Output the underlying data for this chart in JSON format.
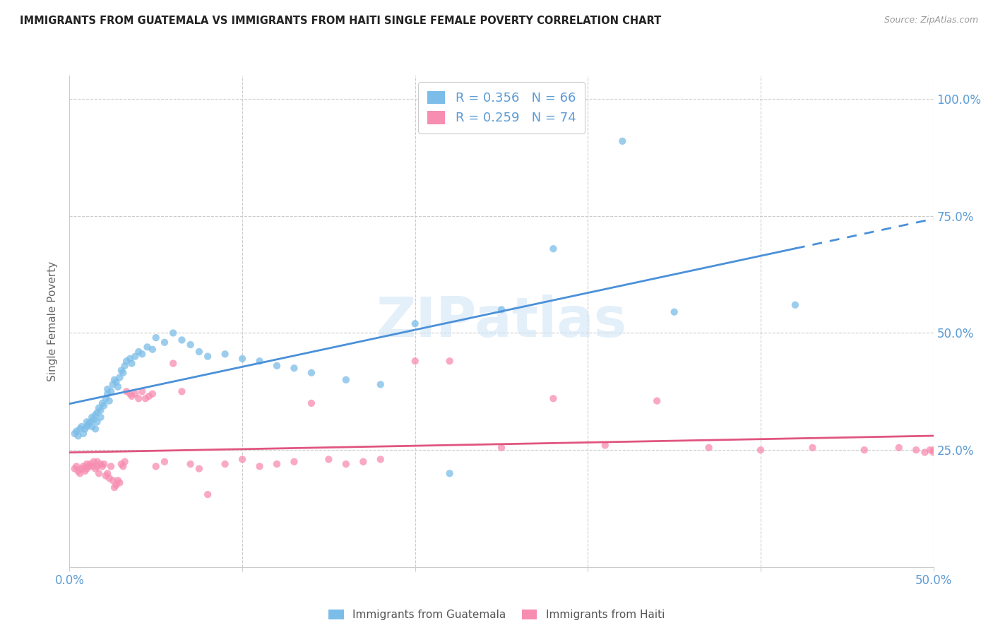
{
  "title": "IMMIGRANTS FROM GUATEMALA VS IMMIGRANTS FROM HAITI SINGLE FEMALE POVERTY CORRELATION CHART",
  "source": "Source: ZipAtlas.com",
  "ylabel": "Single Female Poverty",
  "xlim": [
    0.0,
    0.5
  ],
  "ylim": [
    0.0,
    1.05
  ],
  "R_guatemala": 0.356,
  "N_guatemala": 66,
  "R_haiti": 0.259,
  "N_haiti": 74,
  "color_guatemala": "#7bbde8",
  "color_haiti": "#f78db0",
  "color_trendline_guatemala": "#4a90d9",
  "color_trendline_haiti": "#e05580",
  "color_axis_labels": "#5b9bd5",
  "watermark": "ZIPatlas",
  "guatemala_x": [
    0.003,
    0.004,
    0.005,
    0.006,
    0.007,
    0.008,
    0.009,
    0.01,
    0.01,
    0.011,
    0.012,
    0.013,
    0.013,
    0.014,
    0.015,
    0.015,
    0.016,
    0.016,
    0.017,
    0.018,
    0.018,
    0.019,
    0.02,
    0.021,
    0.022,
    0.022,
    0.023,
    0.024,
    0.025,
    0.026,
    0.027,
    0.028,
    0.029,
    0.03,
    0.031,
    0.032,
    0.033,
    0.035,
    0.036,
    0.038,
    0.04,
    0.042,
    0.045,
    0.048,
    0.05,
    0.055,
    0.06,
    0.065,
    0.07,
    0.075,
    0.08,
    0.09,
    0.1,
    0.11,
    0.12,
    0.13,
    0.14,
    0.16,
    0.18,
    0.2,
    0.22,
    0.25,
    0.28,
    0.32,
    0.35,
    0.42
  ],
  "guatemala_y": [
    0.285,
    0.29,
    0.28,
    0.295,
    0.3,
    0.285,
    0.295,
    0.3,
    0.31,
    0.305,
    0.31,
    0.3,
    0.32,
    0.315,
    0.295,
    0.325,
    0.31,
    0.33,
    0.34,
    0.32,
    0.335,
    0.35,
    0.345,
    0.36,
    0.38,
    0.37,
    0.355,
    0.375,
    0.39,
    0.4,
    0.395,
    0.385,
    0.405,
    0.42,
    0.415,
    0.43,
    0.44,
    0.445,
    0.435,
    0.45,
    0.46,
    0.455,
    0.47,
    0.465,
    0.49,
    0.48,
    0.5,
    0.485,
    0.475,
    0.46,
    0.45,
    0.455,
    0.445,
    0.44,
    0.43,
    0.425,
    0.415,
    0.4,
    0.39,
    0.52,
    0.2,
    0.55,
    0.68,
    0.91,
    0.545,
    0.56
  ],
  "haiti_x": [
    0.003,
    0.004,
    0.005,
    0.006,
    0.007,
    0.008,
    0.009,
    0.01,
    0.01,
    0.011,
    0.012,
    0.013,
    0.014,
    0.015,
    0.016,
    0.016,
    0.017,
    0.018,
    0.019,
    0.02,
    0.021,
    0.022,
    0.023,
    0.024,
    0.025,
    0.026,
    0.027,
    0.028,
    0.029,
    0.03,
    0.031,
    0.032,
    0.033,
    0.035,
    0.036,
    0.038,
    0.04,
    0.042,
    0.044,
    0.046,
    0.048,
    0.05,
    0.055,
    0.06,
    0.065,
    0.07,
    0.075,
    0.08,
    0.09,
    0.1,
    0.11,
    0.12,
    0.13,
    0.14,
    0.15,
    0.16,
    0.17,
    0.18,
    0.2,
    0.22,
    0.25,
    0.28,
    0.31,
    0.34,
    0.37,
    0.4,
    0.43,
    0.46,
    0.48,
    0.49,
    0.495,
    0.498,
    0.5,
    0.5
  ],
  "haiti_y": [
    0.21,
    0.215,
    0.205,
    0.2,
    0.21,
    0.215,
    0.205,
    0.21,
    0.22,
    0.215,
    0.22,
    0.215,
    0.225,
    0.21,
    0.215,
    0.225,
    0.2,
    0.22,
    0.215,
    0.22,
    0.195,
    0.2,
    0.19,
    0.215,
    0.185,
    0.17,
    0.175,
    0.185,
    0.18,
    0.22,
    0.215,
    0.225,
    0.375,
    0.37,
    0.365,
    0.37,
    0.36,
    0.375,
    0.36,
    0.365,
    0.37,
    0.215,
    0.225,
    0.435,
    0.375,
    0.22,
    0.21,
    0.155,
    0.22,
    0.23,
    0.215,
    0.22,
    0.225,
    0.35,
    0.23,
    0.22,
    0.225,
    0.23,
    0.44,
    0.44,
    0.255,
    0.36,
    0.26,
    0.355,
    0.255,
    0.25,
    0.255,
    0.25,
    0.255,
    0.25,
    0.245,
    0.25,
    0.245,
    0.25
  ]
}
